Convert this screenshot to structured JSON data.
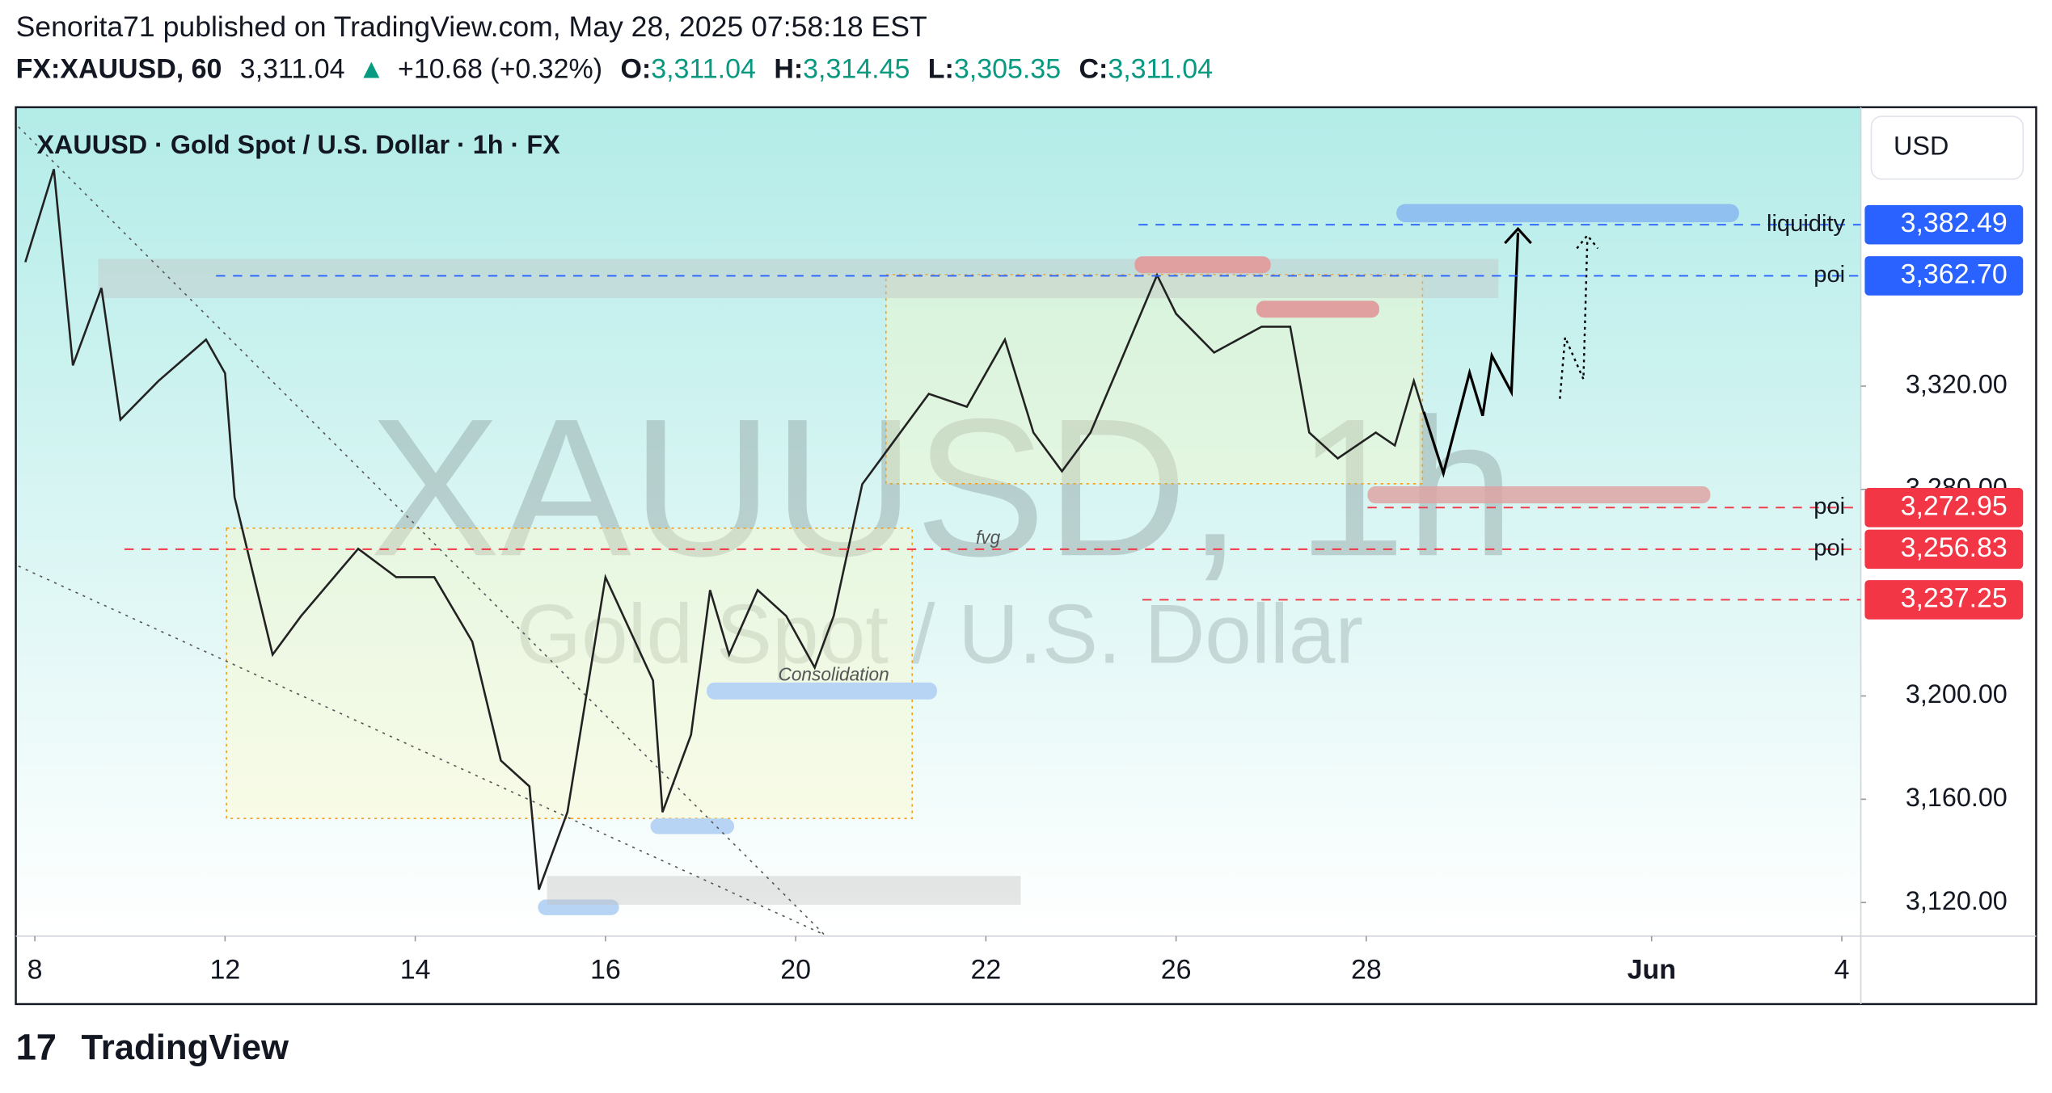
{
  "header": {
    "byline": "Senorita71 published on TradingView.com, May 28, 2025 07:58:18 EST",
    "symbol": "FX:XAUUSD, 60",
    "last": "3,311.04",
    "arrow": "▲",
    "change": "+10.68 (+0.32%)",
    "o_label": "O:",
    "o": "3,311.04",
    "h_label": "H:",
    "h": "3,314.45",
    "l_label": "L:",
    "l": "3,305.35",
    "c_label": "C:",
    "c": "3,311.04"
  },
  "chart_data": {
    "type": "line",
    "title": "XAUUSD · Gold Spot / U.S. Dollar · 1h · FX",
    "watermark": "XAUUSD, 1h",
    "watermark_sub": "Gold Spot / U.S. Dollar",
    "currency": "USD",
    "annotations": [
      "fvg",
      "Consolidation"
    ],
    "color": "#222222",
    "x": [
      -0.1,
      0.2,
      0.4,
      0.7,
      0.9,
      1.3,
      1.8,
      2.0,
      2.1,
      2.5,
      2.8,
      3.4,
      3.8,
      4.2,
      4.6,
      4.9,
      5.2,
      5.3,
      5.6,
      6.0,
      6.5,
      6.6,
      6.9,
      7.1,
      7.3,
      7.6,
      7.9,
      8.2,
      8.4,
      8.7,
      9.0,
      9.4,
      9.8,
      10.2,
      10.5,
      10.8,
      11.1,
      11.4,
      11.8,
      12.0,
      12.4,
      12.9,
      13.2,
      13.4,
      13.7,
      14.1,
      14.3,
      14.5,
      14.6
    ],
    "values": [
      3368,
      3404,
      3328,
      3358,
      3307,
      3322,
      3338,
      3325,
      3277,
      3216,
      3231,
      3257,
      3246,
      3246,
      3221,
      3175,
      3165,
      3125,
      3155,
      3246,
      3206,
      3155,
      3185,
      3241,
      3216,
      3241,
      3231,
      3211,
      3231,
      3282,
      3297,
      3317,
      3312,
      3338,
      3302,
      3287,
      3302,
      3328,
      3363,
      3348,
      3333,
      3343,
      3343,
      3302,
      3292,
      3302,
      3297,
      3322,
      3310
    ],
    "xlim": [
      -0.2,
      19.2
    ],
    "xticks": [
      {
        "value": 0,
        "label": "8"
      },
      {
        "value": 2,
        "label": "12"
      },
      {
        "value": 4,
        "label": "14"
      },
      {
        "value": 6,
        "label": "16"
      },
      {
        "value": 8,
        "label": "20"
      },
      {
        "value": 10,
        "label": "22"
      },
      {
        "value": 12,
        "label": "26"
      },
      {
        "value": 14,
        "label": "28"
      },
      {
        "value": 17,
        "label": "Jun"
      },
      {
        "value": 19,
        "label": "4"
      }
    ],
    "ylim": [
      3107,
      3428
    ],
    "yticks": [
      {
        "value": 3120,
        "label": "3,120.00"
      },
      {
        "value": 3160,
        "label": "3,160.00"
      },
      {
        "value": 3200,
        "label": "3,200.00"
      },
      {
        "value": 3280,
        "label": "3,280.00"
      },
      {
        "value": 3320,
        "label": "3,320.00"
      }
    ],
    "levels": [
      {
        "name": "liquidity",
        "value": 3382.49,
        "label": "3,382.49",
        "color": "#2962ff"
      },
      {
        "name": "poi",
        "value": 3362.7,
        "label": "3,362.70",
        "color": "#2962ff"
      },
      {
        "name": "poi",
        "value": 3272.95,
        "label": "3,272.95",
        "color": "#f23645"
      },
      {
        "name": "poi",
        "value": 3256.83,
        "label": "3,256.83",
        "color": "#f23645"
      },
      {
        "value": 3237.25,
        "label": "3,237.25",
        "color": "#f23645"
      }
    ]
  },
  "footer": {
    "brand": "TradingView"
  }
}
